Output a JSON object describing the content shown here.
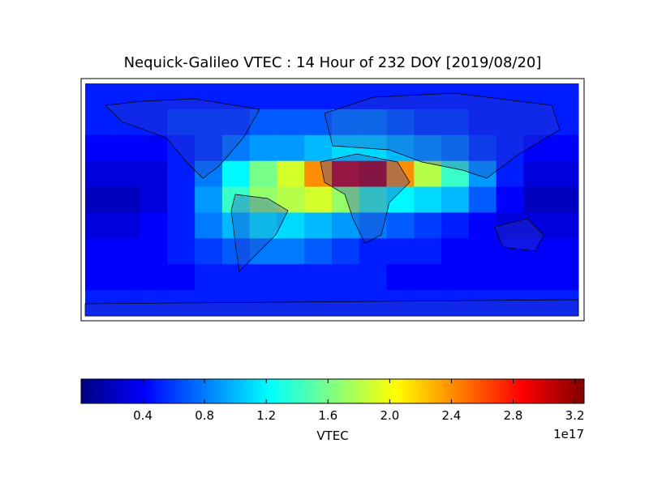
{
  "chart_data": {
    "type": "heatmap",
    "title": "Nequick-Galileo VTEC : 14 Hour of 232 DOY [2019/08/20]",
    "x": [
      -170,
      -150,
      -130,
      -110,
      -90,
      -70,
      -50,
      -30,
      -10,
      10,
      30,
      50,
      70,
      90,
      110,
      130,
      150,
      170
    ],
    "y": [
      80,
      60,
      40,
      20,
      0,
      -20,
      -40,
      -60,
      -80
    ],
    "xlim": [
      -180,
      180
    ],
    "ylim": [
      -90,
      90
    ],
    "values": [
      [
        0.5,
        0.5,
        0.5,
        0.5,
        0.5,
        0.5,
        0.5,
        0.5,
        0.5,
        0.5,
        0.5,
        0.5,
        0.5,
        0.5,
        0.5,
        0.5,
        0.5,
        0.5
      ],
      [
        0.5,
        0.5,
        0.5,
        0.6,
        0.6,
        0.6,
        0.7,
        0.7,
        0.7,
        0.8,
        0.8,
        0.7,
        0.6,
        0.6,
        0.5,
        0.5,
        0.5,
        0.5
      ],
      [
        0.4,
        0.4,
        0.4,
        0.5,
        0.6,
        0.8,
        0.9,
        0.9,
        1.0,
        1.1,
        1.1,
        1.0,
        0.9,
        0.8,
        0.6,
        0.5,
        0.4,
        0.4
      ],
      [
        0.3,
        0.3,
        0.3,
        0.5,
        0.8,
        1.2,
        1.6,
        1.9,
        2.4,
        3.0,
        3.1,
        2.4,
        1.8,
        1.4,
        0.9,
        0.5,
        0.3,
        0.3
      ],
      [
        0.2,
        0.2,
        0.3,
        0.5,
        0.9,
        1.4,
        1.7,
        1.8,
        1.9,
        1.7,
        1.4,
        1.2,
        1.1,
        1.0,
        0.7,
        0.4,
        0.2,
        0.2
      ],
      [
        0.3,
        0.3,
        0.4,
        0.5,
        0.8,
        1.0,
        1.2,
        1.1,
        1.0,
        0.9,
        0.8,
        0.7,
        0.6,
        0.5,
        0.4,
        0.3,
        0.3,
        0.3
      ],
      [
        0.4,
        0.4,
        0.4,
        0.5,
        0.6,
        0.7,
        0.8,
        0.8,
        0.7,
        0.6,
        0.5,
        0.5,
        0.5,
        0.4,
        0.4,
        0.4,
        0.4,
        0.4
      ],
      [
        0.4,
        0.4,
        0.4,
        0.4,
        0.5,
        0.5,
        0.5,
        0.5,
        0.5,
        0.5,
        0.5,
        0.4,
        0.4,
        0.4,
        0.4,
        0.4,
        0.4,
        0.4
      ],
      [
        0.5,
        0.5,
        0.5,
        0.5,
        0.5,
        0.5,
        0.5,
        0.5,
        0.5,
        0.5,
        0.5,
        0.5,
        0.5,
        0.5,
        0.5,
        0.5,
        0.5,
        0.5
      ]
    ],
    "colormap": "jet",
    "colorbar": {
      "lim": [
        0,
        3.26
      ],
      "ticks": [
        0.4,
        0.8,
        1.2,
        1.6,
        {
          "value": 2,
          "label": "2.0"
        },
        2.4,
        2.8,
        3.2
      ],
      "label": "VTEC",
      "offset_label": "1e17"
    }
  }
}
